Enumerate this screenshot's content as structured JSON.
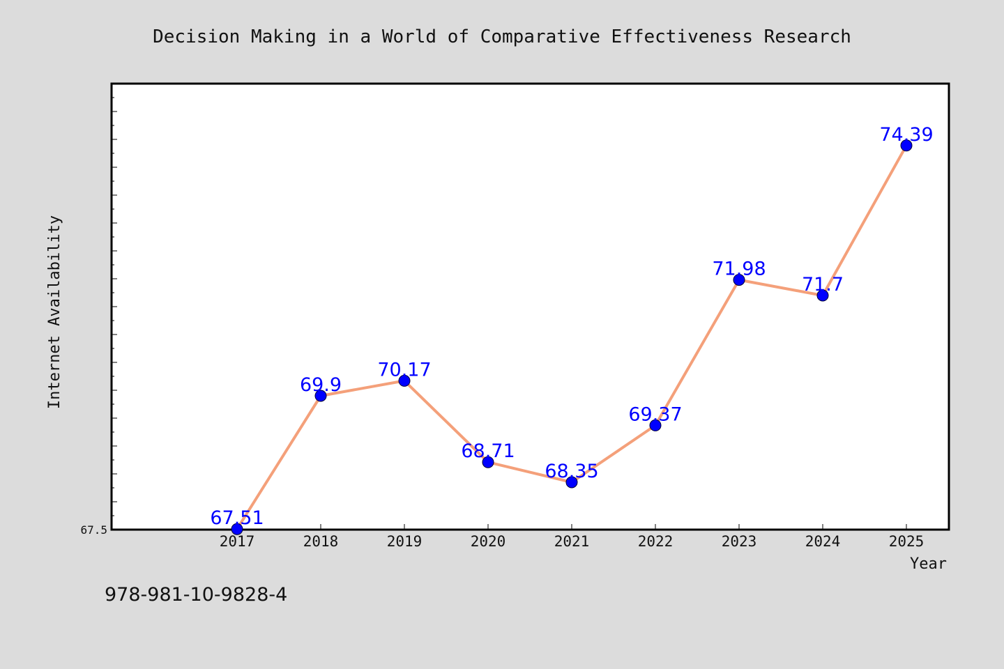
{
  "chart_data": {
    "type": "line",
    "title": "Decision Making in a World of Comparative Effectiveness Research",
    "xlabel": "Year",
    "ylabel": "Internet Availability",
    "categories": [
      "2017",
      "2018",
      "2019",
      "2020",
      "2021",
      "2022",
      "2023",
      "2024",
      "2025"
    ],
    "series": [
      {
        "values": [
          67.51,
          69.9,
          70.17,
          68.71,
          68.35,
          69.37,
          71.98,
          71.7,
          74.39
        ],
        "labels": [
          "67.51",
          "69.9",
          "70.17",
          "68.71",
          "68.35",
          "69.37",
          "71.98",
          "71.7",
          "74.39"
        ],
        "line_color": "#f4a07a",
        "marker_color": "#0000ff"
      }
    ],
    "ylim": [
      67.5,
      75.5
    ],
    "ytick_label": "67.5",
    "grid": false
  },
  "footnote": "978-981-10-9828-4"
}
